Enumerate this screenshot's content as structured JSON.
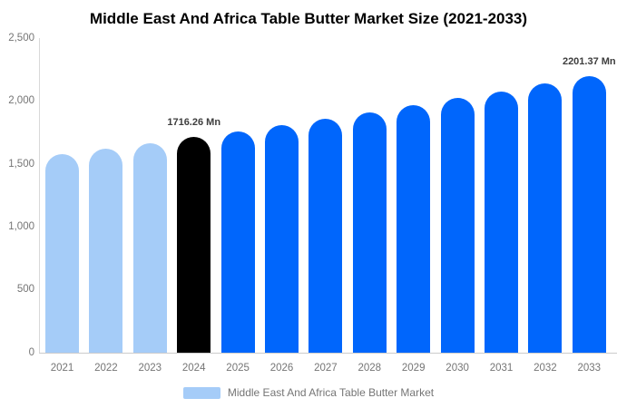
{
  "chart_data": {
    "type": "bar",
    "title": "Middle East And Africa Table Butter Market Size (2021-2033)",
    "unit": "Mn",
    "categories": [
      "2021",
      "2022",
      "2023",
      "2024",
      "2025",
      "2026",
      "2027",
      "2028",
      "2029",
      "2030",
      "2031",
      "2032",
      "2033"
    ],
    "values": [
      1580,
      1624,
      1670,
      1716.26,
      1764,
      1813,
      1864,
      1916,
      1970,
      2025,
      2082,
      2140,
      2201.37
    ],
    "bar_roles": [
      "past",
      "past",
      "past",
      "base",
      "forecast",
      "forecast",
      "forecast",
      "forecast",
      "forecast",
      "forecast",
      "forecast",
      "forecast",
      "forecast"
    ],
    "colors": {
      "past": "#a5ccf8",
      "base": "#000000",
      "forecast": "#0066fc",
      "axis_line": "#d9d9d9",
      "tick_text": "#757575",
      "annotation_text": "#3d3d3d",
      "title_text": "#000000"
    },
    "annotations": [
      {
        "index": 3,
        "text": "1716.26 Mn"
      },
      {
        "index": 12,
        "text": "2201.37 Mn"
      }
    ],
    "xlabel": "",
    "ylabel": "",
    "ylim": [
      0,
      2500
    ],
    "yticks": [
      {
        "value": 0,
        "label": "0"
      },
      {
        "value": 500,
        "label": "500"
      },
      {
        "value": 1000,
        "label": "1,000"
      },
      {
        "value": 1500,
        "label": "1,500"
      },
      {
        "value": 2000,
        "label": "2,000"
      },
      {
        "value": 2500,
        "label": "2,500"
      }
    ],
    "grid": false,
    "legend_position": "bottom",
    "legend": [
      {
        "label": "Middle East And Africa Table Butter Market",
        "color": "#a5ccf8"
      }
    ]
  }
}
